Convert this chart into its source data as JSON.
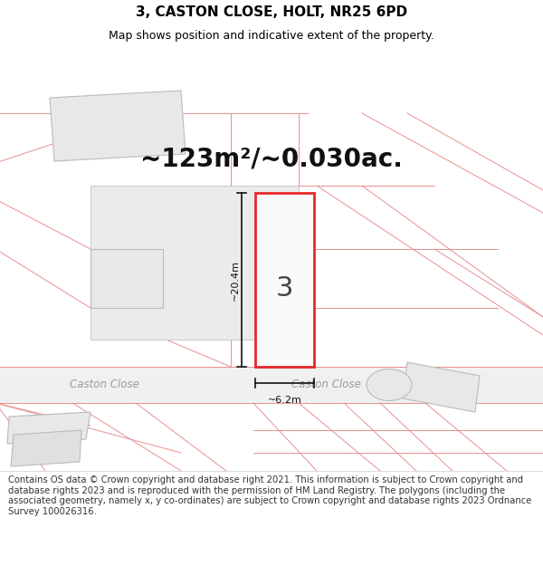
{
  "title": "3, CASTON CLOSE, HOLT, NR25 6PD",
  "subtitle": "Map shows position and indicative extent of the property.",
  "area_text": "~123m²/~0.030ac.",
  "dim_width": "~6.2m",
  "dim_height": "~20.4m",
  "label_number": "3",
  "road_label_left": "Caston Close",
  "road_label_right": "Caston Close",
  "footer": "Contains OS data © Crown copyright and database right 2021. This information is subject to Crown copyright and database rights 2023 and is reproduced with the permission of HM Land Registry. The polygons (including the associated geometry, namely x, y co-ordinates) are subject to Crown copyright and database rights 2023 Ordnance Survey 100026316.",
  "bg_color": "#ffffff",
  "plot_fill": "#f5f5f5",
  "plot_stroke": "#e8272a",
  "line_color": "#e89090",
  "dim_line_color": "#111111",
  "building_fill": "#e8e8e8",
  "building_stroke": "#bbbbbb",
  "road_fill": "#f0f0f0",
  "title_fontsize": 11,
  "subtitle_fontsize": 9,
  "area_fontsize": 20,
  "footer_fontsize": 7.2,
  "road_label_color": "#999999",
  "number_color": "#444444"
}
